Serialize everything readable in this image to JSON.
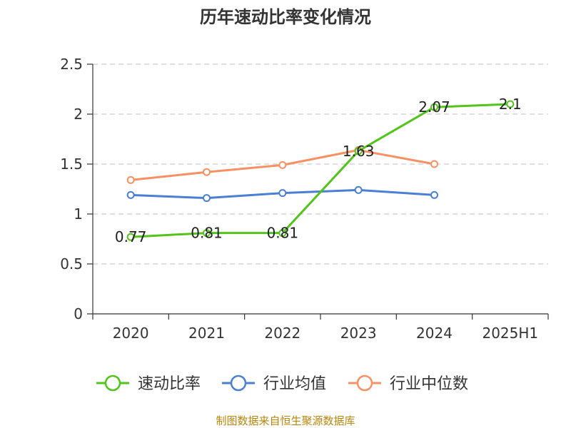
{
  "chart_data": {
    "type": "line",
    "title": "历年速动比率变化情况",
    "categories": [
      "2020",
      "2021",
      "2022",
      "2023",
      "2024",
      "2025H1"
    ],
    "ylim": [
      0,
      2.5
    ],
    "y_ticks": [
      "0",
      "0.5",
      "1",
      "1.5",
      "2",
      "2.5"
    ],
    "grid": true,
    "legend_position": "bottom",
    "series": [
      {
        "name": "速动比率",
        "color": "#52c41a",
        "values": [
          0.77,
          0.81,
          0.81,
          1.63,
          2.07,
          2.1
        ],
        "labels": [
          "0.77",
          "0.81",
          "0.81",
          "1.63",
          "2.07",
          "2.1"
        ]
      },
      {
        "name": "行业均值",
        "color": "#4a7fd4",
        "values": [
          1.19,
          1.16,
          1.21,
          1.24,
          1.19,
          null
        ]
      },
      {
        "name": "行业中位数",
        "color": "#f79163",
        "values": [
          1.34,
          1.42,
          1.49,
          1.64,
          1.5,
          null
        ]
      }
    ]
  },
  "footer": {
    "source": "制图数据来自恒生聚源数据库"
  }
}
